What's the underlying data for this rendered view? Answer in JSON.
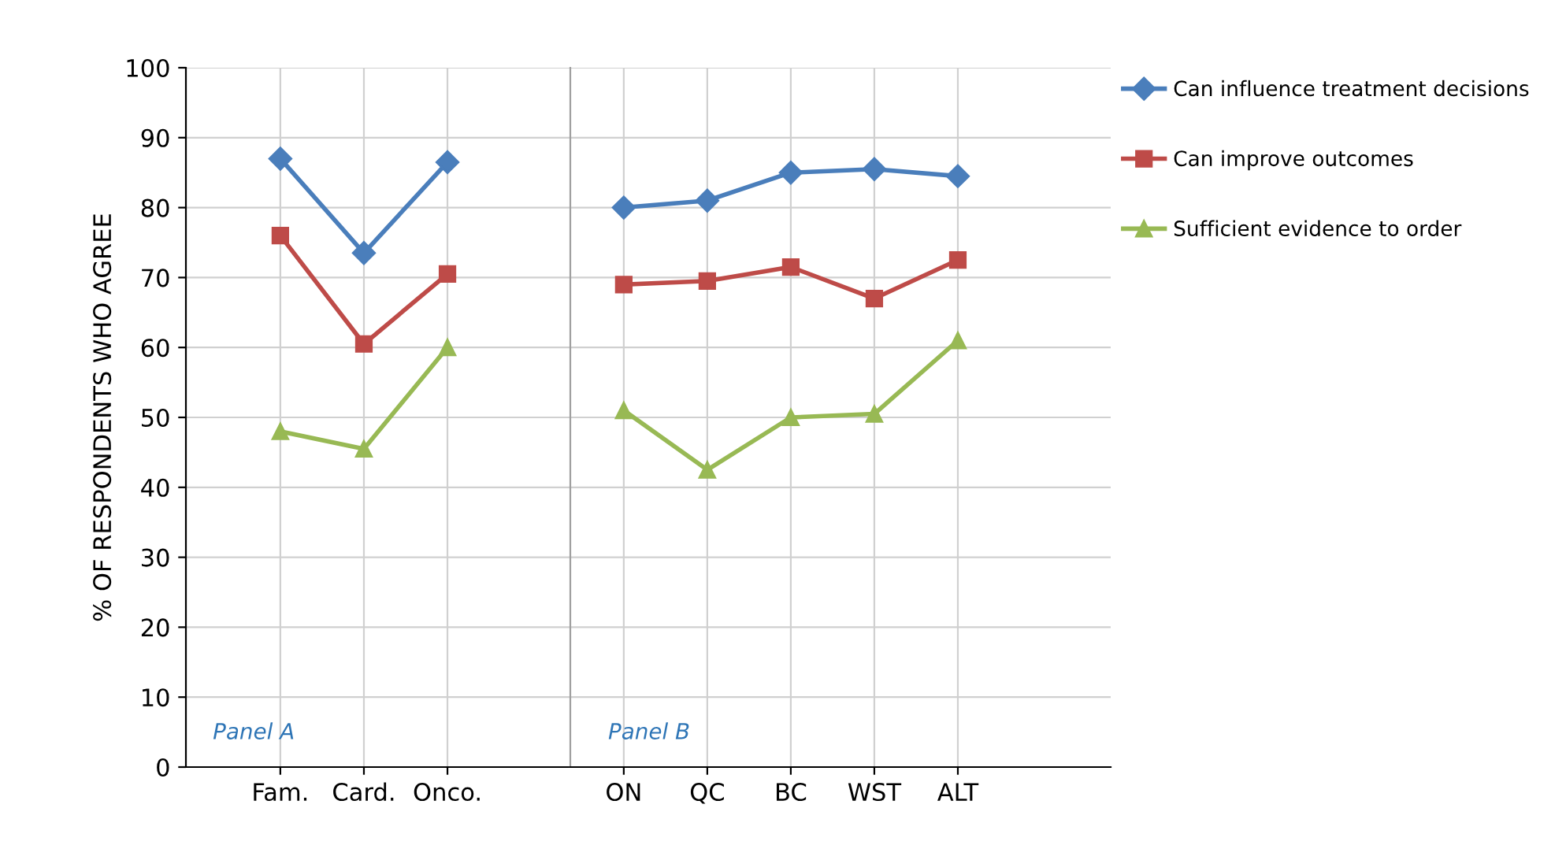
{
  "chart_data": [
    {
      "type": "line",
      "ylabel": "% OF RESPONDENTS WHO AGREE",
      "categories": [
        "Fam.",
        "Card.",
        "Onco."
      ],
      "ylim": [
        0,
        100
      ],
      "yticks": [
        0,
        10,
        20,
        30,
        40,
        50,
        60,
        70,
        80,
        90,
        100
      ],
      "grid": true,
      "annotations": [
        "Panel A"
      ],
      "series": [
        {
          "color": "#4a7ebb",
          "marker": "diamond",
          "values": [
            87,
            73.5,
            86.5
          ]
        },
        {
          "color": "#be4b48",
          "marker": "square",
          "values": [
            76,
            60.5,
            70.5
          ]
        },
        {
          "color": "#98b954",
          "marker": "triangle",
          "values": [
            48,
            45.5,
            60
          ]
        }
      ]
    },
    {
      "type": "line",
      "categories": [
        "ON",
        "QC",
        "BC",
        "WST",
        "ALT"
      ],
      "ylim": [
        0,
        100
      ],
      "yticks": [
        0,
        10,
        20,
        30,
        40,
        50,
        60,
        70,
        80,
        90,
        100
      ],
      "tick_labels": "x",
      "grid": true,
      "legend": "right",
      "annotations": [
        "Panel B"
      ],
      "series": [
        {
          "name": "Can influence treatment decisions",
          "color": "#4a7ebb",
          "marker": "diamond",
          "values": [
            80,
            81,
            85,
            85.5,
            84.5
          ]
        },
        {
          "name": "Can improve outcomes",
          "color": "#be4b48",
          "marker": "square",
          "values": [
            69,
            69.5,
            71.5,
            67,
            72.5
          ]
        },
        {
          "name": "Sufficient evidence to order",
          "color": "#98b954",
          "marker": "triangle",
          "values": [
            51,
            42.5,
            50,
            50.5,
            61
          ]
        }
      ]
    }
  ]
}
